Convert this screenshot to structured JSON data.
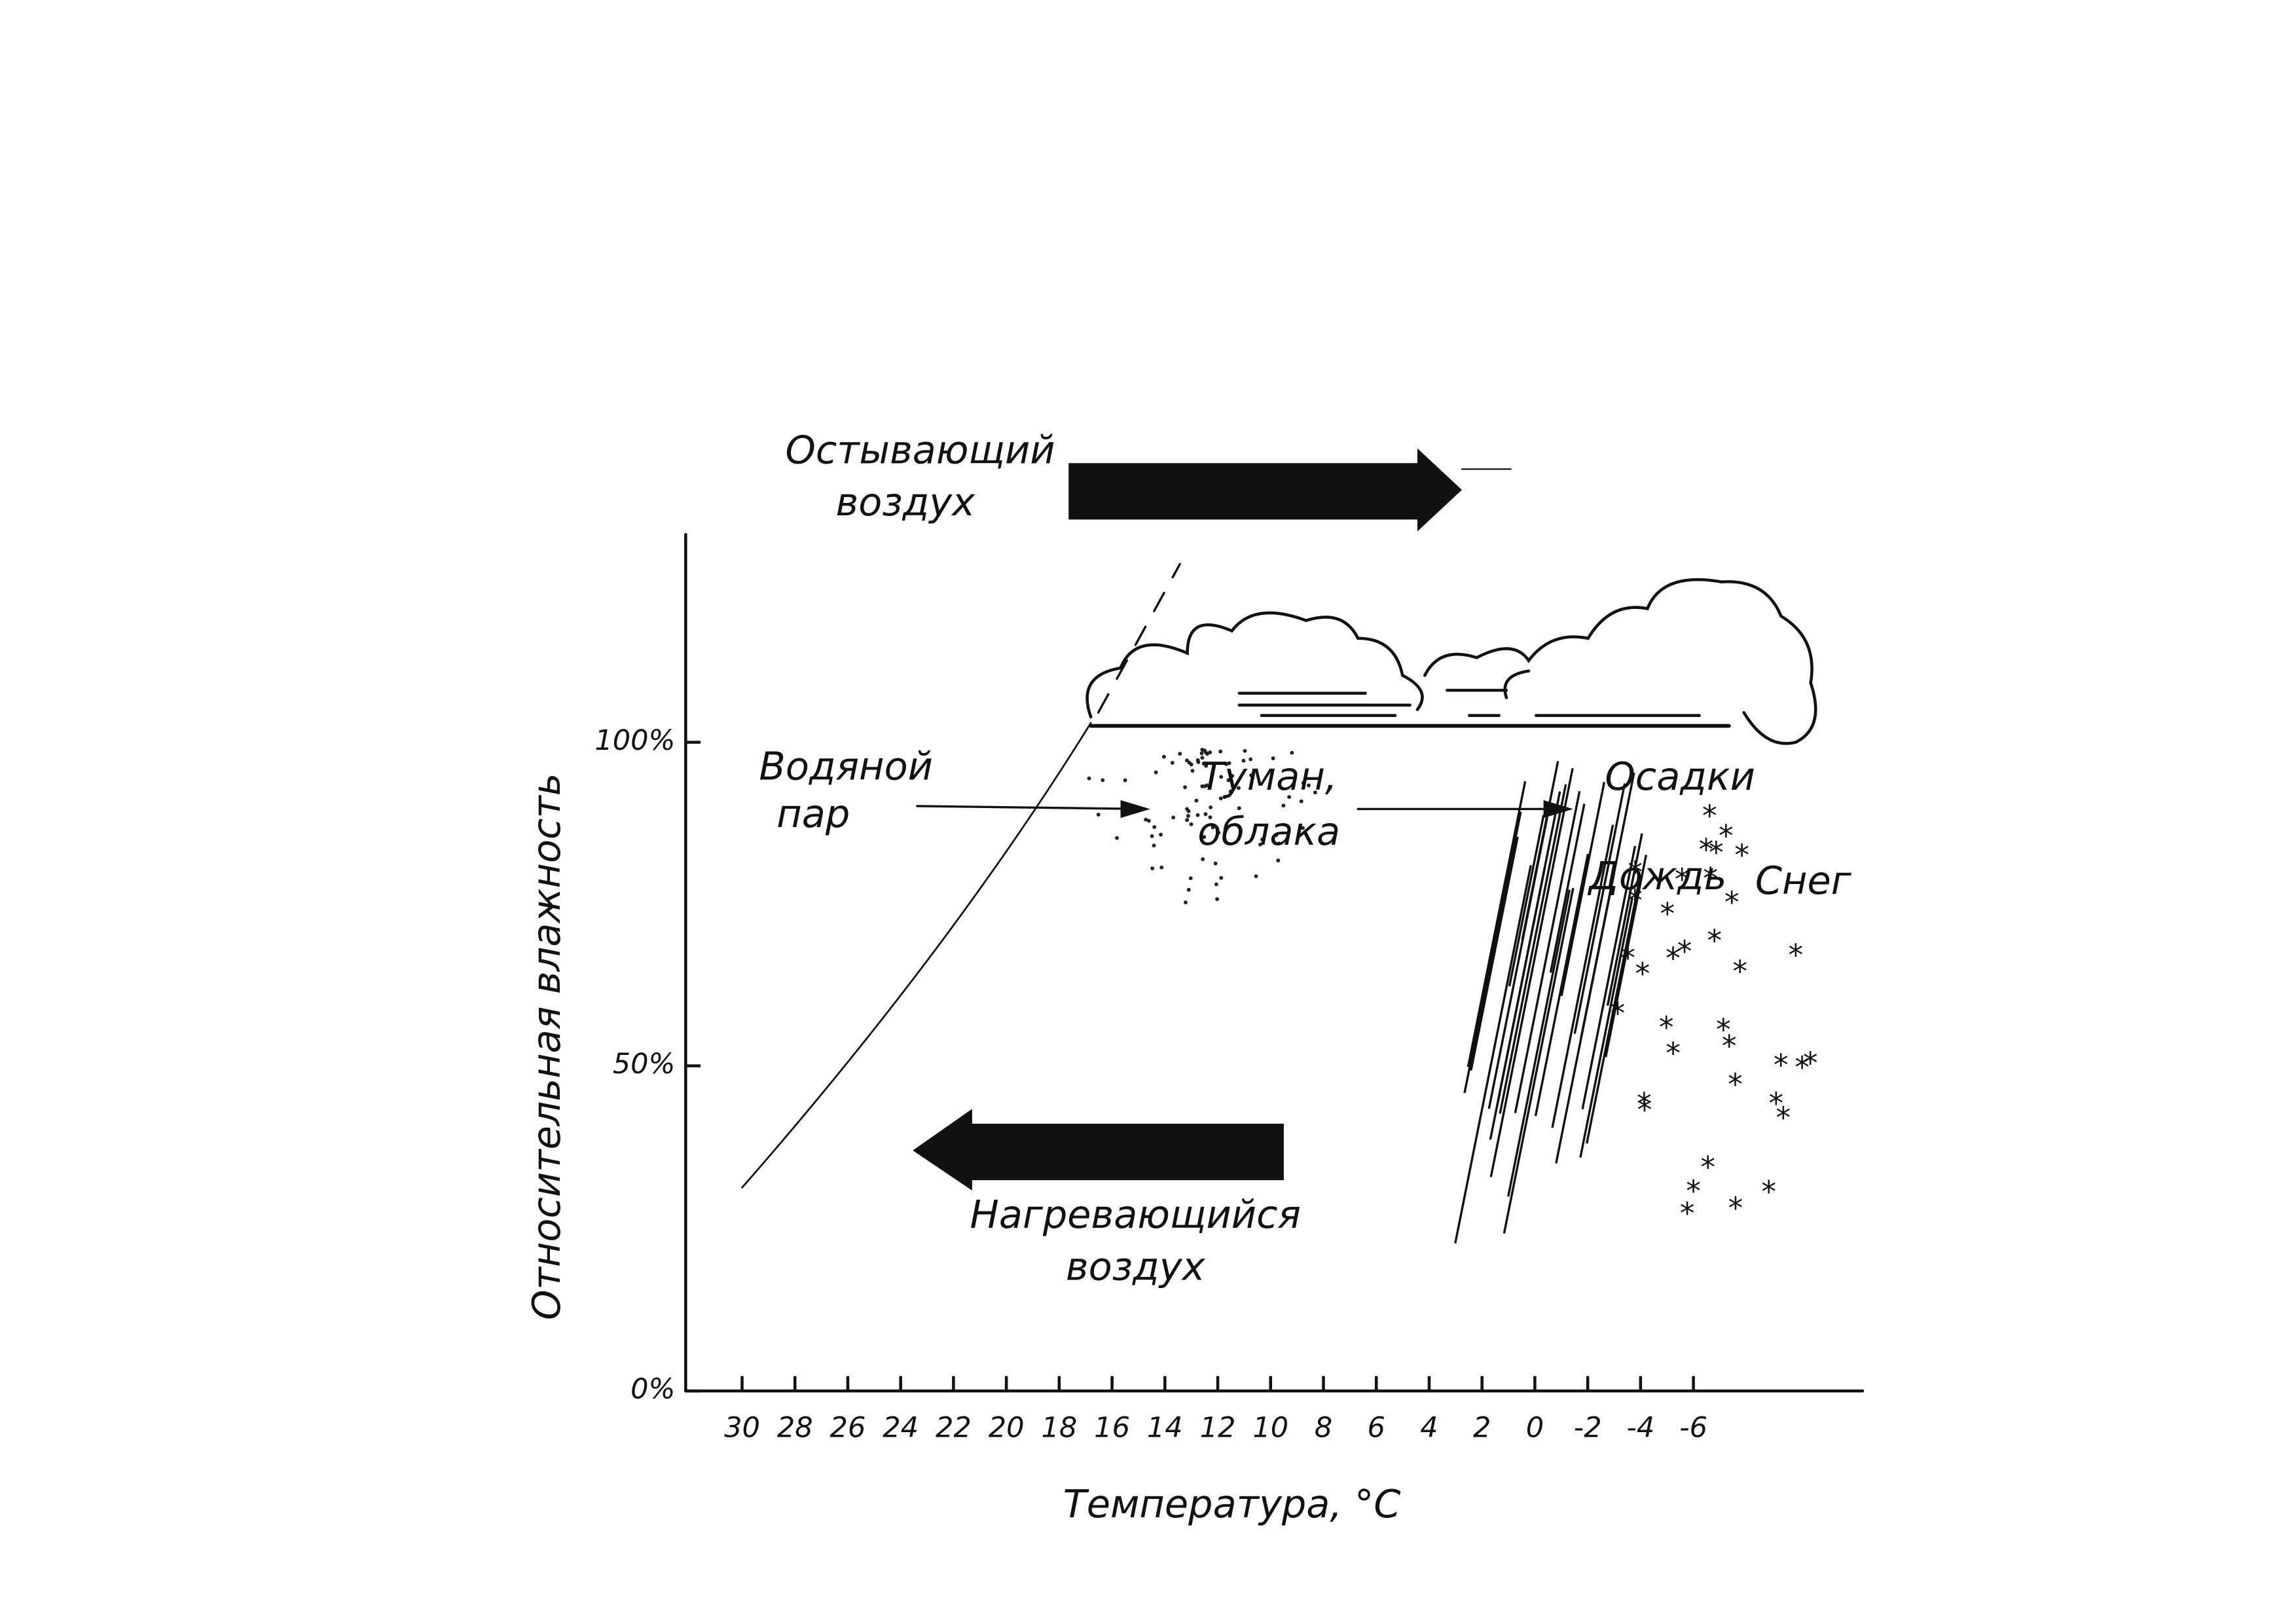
{
  "axes": {
    "y_label": "Относительная влажность",
    "x_label": "Температура, °С",
    "y_ticks": [
      "100%",
      "50%",
      "0%"
    ],
    "x_ticks": [
      "30",
      "28",
      "26",
      "24",
      "22",
      "20",
      "18",
      "16",
      "14",
      "12",
      "10",
      "8",
      "6",
      "4",
      "2",
      "0",
      "-2",
      "-4",
      "-6"
    ]
  },
  "labels": {
    "cooling_air": [
      "Остывающий",
      "воздух"
    ],
    "warming_air": [
      "Нагревающийся",
      "воздух"
    ],
    "water_vapor": [
      "Водяной",
      "пар"
    ],
    "fog_clouds": [
      "Туман,",
      "облака"
    ],
    "precipitation": "Осадки",
    "rain": "Дождь",
    "snow": "Снег"
  }
}
